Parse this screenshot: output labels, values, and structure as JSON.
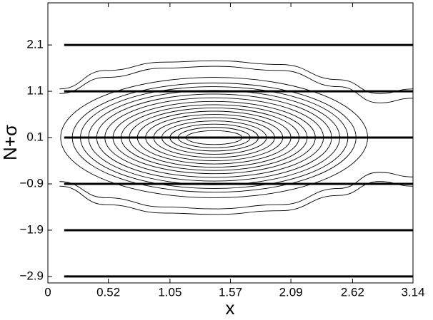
{
  "chart_data": {
    "type": "contour",
    "x_label": "x",
    "y_label": "N+σ",
    "xlim": [
      0,
      3.14
    ],
    "ylim": [
      -3.04,
      3.01
    ],
    "xticks": [
      0,
      0.52,
      1.05,
      1.57,
      2.09,
      2.62,
      3.14
    ],
    "yticks": [
      {
        "value": -2.9,
        "label": "−2.9"
      },
      {
        "value": -1.9,
        "label": "−1.9"
      },
      {
        "value": -0.9,
        "label": "−0.9"
      },
      0.1,
      1.1,
      2.1
    ],
    "hlines": {
      "values": [
        2.1,
        1.1,
        0.1,
        -0.9,
        -1.9,
        -2.9
      ],
      "x": [
        0.14,
        3.14
      ],
      "color": "#000000"
    },
    "contours": {
      "center": [
        1.43,
        0.1
      ],
      "color": "#000000",
      "rx": [
        0.24,
        0.31,
        0.38,
        0.45,
        0.52,
        0.59,
        0.66,
        0.73,
        0.8,
        0.87,
        0.94,
        1.01,
        1.08,
        1.15,
        1.22,
        1.32
      ],
      "ry": [
        0.15,
        0.22,
        0.29,
        0.36,
        0.43,
        0.5,
        0.57,
        0.64,
        0.71,
        0.78,
        0.86,
        0.94,
        1.02,
        1.1,
        1.18,
        1.3
      ]
    },
    "open_contours": [
      {
        "x": [
          0.1,
          0.5,
          1.0,
          1.43,
          2.0,
          2.5,
          2.85,
          3.14
        ],
        "y": [
          1.15,
          1.55,
          1.73,
          1.76,
          1.68,
          1.35,
          1.05,
          1.15
        ]
      },
      {
        "x": [
          0.1,
          0.5,
          1.0,
          1.43,
          2.0,
          2.5,
          2.85,
          3.14
        ],
        "y": [
          1.05,
          1.4,
          1.6,
          1.64,
          1.55,
          1.2,
          0.85,
          0.95
        ]
      },
      {
        "x": [
          0.1,
          0.5,
          1.0,
          1.43,
          2.0,
          2.5,
          2.85,
          3.14
        ],
        "y": [
          -0.95,
          -1.35,
          -1.53,
          -1.56,
          -1.48,
          -1.15,
          -0.85,
          -0.95
        ]
      },
      {
        "x": [
          0.1,
          0.5,
          1.0,
          1.43,
          2.0,
          2.5,
          2.85,
          3.14
        ],
        "y": [
          -0.85,
          -1.2,
          -1.4,
          -1.44,
          -1.35,
          -1.0,
          -0.65,
          -0.75
        ]
      }
    ]
  }
}
